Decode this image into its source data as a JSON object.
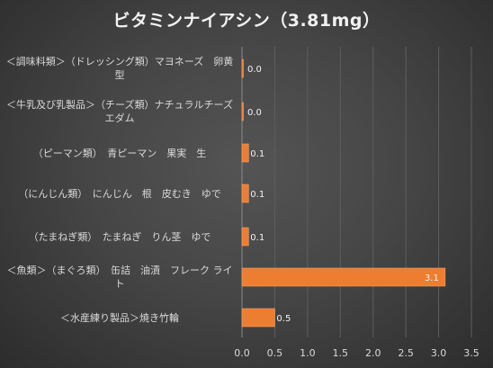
{
  "chart_data": {
    "type": "bar",
    "orientation": "horizontal",
    "title": "ビタミンナイアシン（3.81mg）",
    "categories": [
      "＜調味料類＞（ドレッシング類）マヨネーズ　卵黄型",
      "＜牛乳及び乳製品＞（チーズ類）ナチュラルチーズ　エダム",
      "（ピーマン類）　青ピーマン　果実　生",
      "（にんじん類）　にんじん　根　皮むき　ゆで",
      "（たまねぎ類）　たまねぎ　りん茎　ゆで",
      "＜魚類＞（まぐろ類）　缶詰　油漬　フレーク ライト",
      "＜水産練り製品＞焼き竹輪"
    ],
    "values": [
      0.0,
      0.0,
      0.1,
      0.1,
      0.1,
      3.1,
      0.5
    ],
    "data_labels": [
      "0.0",
      "0.0",
      "0.1",
      "0.1",
      "0.1",
      "3.1",
      "0.5"
    ],
    "xlim": [
      0,
      3.5
    ],
    "xticks": [
      "0.0",
      "0.5",
      "1.0",
      "1.5",
      "2.0",
      "2.5",
      "3.0",
      "3.5"
    ],
    "bar_color": "#ed7d31",
    "grid": true,
    "legend": "none"
  }
}
